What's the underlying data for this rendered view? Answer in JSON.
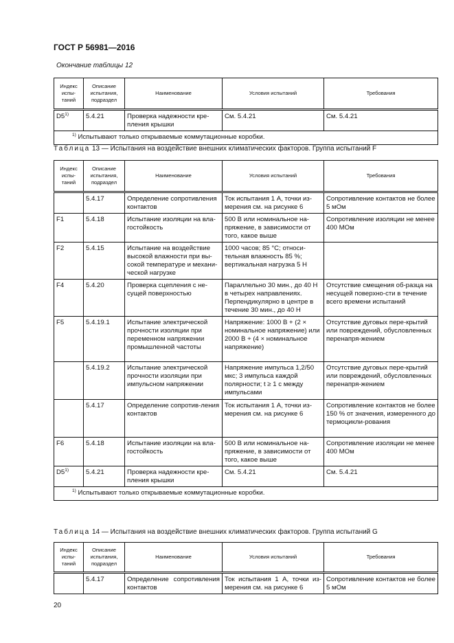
{
  "header": {
    "doc_title": "ГОСТ Р 56981—2016"
  },
  "columns": [
    "Индекс испы-таний",
    "Описание испытания, подраздел",
    "Наименование",
    "Условия испытаний",
    "Требования"
  ],
  "table12": {
    "continuation": "Окончание таблицы 12",
    "rows": [
      {
        "index": "D5",
        "sup": "1)",
        "clause": "5.4.21",
        "name": "Проверка надежности кре-пления крышки",
        "conditions": "См. 5.4.21",
        "requirements": "См. 5.4.21"
      }
    ],
    "footnote_mark": "1)",
    "footnote": "Испытывают только открываемые коммутационные коробки."
  },
  "table13": {
    "caption_word": "Таблица",
    "caption": "13 — Испытания на воздействие внешних климатических факторов. Группа испытаний F",
    "rows": [
      {
        "index": "",
        "sup": "",
        "clause": "5.4.17",
        "name": "Определение сопротивления контактов",
        "conditions": "Ток испытания 1 А, точки из-мерения см. на рисунке 6",
        "requirements": "Сопротивление контактов не более 5 мОм"
      },
      {
        "index": "F1",
        "sup": "",
        "clause": "5.4.18",
        "name": "Испытание изоляции на вла-гостойкость",
        "conditions": "500 В или номинальное на-пряжение, в зависимости от того, какое выше",
        "requirements": "Сопротивление изоляции не менее 400 МОм"
      },
      {
        "index": "F2",
        "sup": "",
        "clause": "5.4.15",
        "name": "Испытание на воздействие высокой влажности при вы-сокой температуре и механи-ческой нагрузке",
        "conditions": "1000 часов; 85 °С; относи-тельная влажность 85 %; вертикальная нагрузка 5 Н",
        "requirements": ""
      },
      {
        "index": "F4",
        "sup": "",
        "clause": "5.4.20",
        "name": "Проверка сцепления с не-сущей поверхностью",
        "conditions": "Параллельно 30 мин., до 40 Н в четырех направлениях. Перпендикулярно в центре в течение 30 мин., до 40 Н",
        "requirements": "Отсутствие смещения об-разца на несущей поверхно-сти в течение всего времени испытаний"
      },
      {
        "index": "F5",
        "sup": "",
        "clause": "5.4.19.1",
        "name": "Испытание электрической прочности изоляции при переменном напряжении промышленной частоты",
        "conditions": "Напряжение: 1000 В + (2 × номинальное напряжение) или 2000 В + (4 × номинальное напряжение)",
        "requirements": "Отсутствие дуговых пере-крытий или повреждений, обусловленных перенапря-жением"
      },
      {
        "index": "",
        "sup": "",
        "clause": "5.4.19.2",
        "name": "Испытание электрической прочности изоляции при импульсном напряжении",
        "conditions": "Напряжение импульса 1,2/50 мкс; 3 импульса каждой полярности; t ≥ 1 с между импульсами",
        "requirements": "Отсутствие дуговых пере-крытий или повреждений, обусловленных перенапря-жением"
      },
      {
        "index": "",
        "sup": "",
        "clause": "5.4.17",
        "name": "Определение сопротив-ления контактов",
        "conditions": "Ток испытания 1 А, точки из-мерения см. на рисунке 6",
        "requirements": "Сопротивление контактов не более 150 % от значения, измеренного до термоцикли-рования"
      },
      {
        "index": "F6",
        "sup": "",
        "clause": "5.4.18",
        "name": "Испытание изоляции на вла-гостойкость",
        "conditions": "500 В или номинальное на-пряжение, в зависимости от того, какое выше",
        "requirements": "Сопротивление изоляции не менее 400 МОм"
      },
      {
        "index": "D5",
        "sup": "1)",
        "clause": "5.4.21",
        "name": "Проверка надежности кре-пления крышки",
        "conditions": "См. 5.4.21",
        "requirements": "См. 5.4.21"
      }
    ],
    "footnote_mark": "1)",
    "footnote": "Испытывают только открываемые коммутационные коробки."
  },
  "table14": {
    "caption_word": "Таблица",
    "caption": "14 — Испытания на воздействие внешних климатических факторов. Группа испытаний G",
    "rows": [
      {
        "index": "",
        "sup": "",
        "clause": "5.4.17",
        "name": "Определение сопротивления контактов",
        "conditions": "Ток испытания 1 А, точки из-мерения см. на рисунке 6",
        "requirements": "Сопротивление контактов не более 5 мОм"
      }
    ]
  },
  "footer": {
    "page_number": "20"
  }
}
